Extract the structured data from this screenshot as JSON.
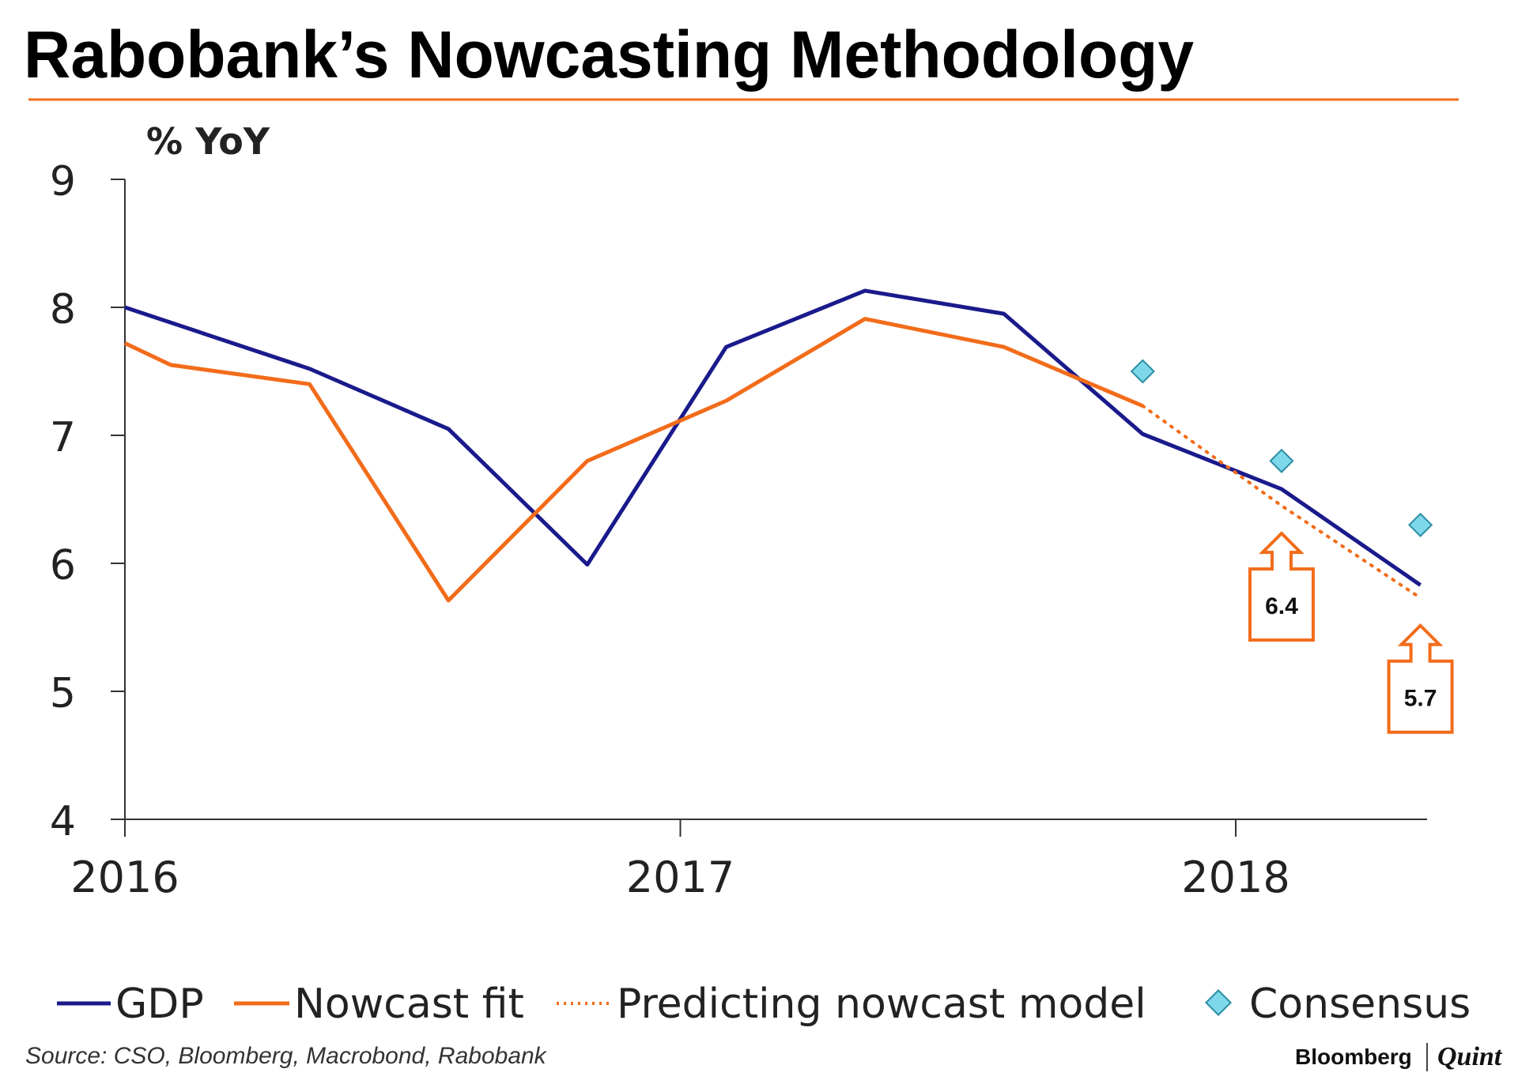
{
  "header": {
    "title": "Rabobank’s Nowcasting Methodology"
  },
  "chart_data": {
    "type": "line",
    "title": "Rabobank’s Nowcasting Methodology",
    "ylabel": "% YoY",
    "xlabel": "",
    "ylim": [
      4,
      9
    ],
    "xlim": [
      0,
      9.35
    ],
    "y_ticks": [
      "4",
      "5",
      "6",
      "7",
      "8",
      "9"
    ],
    "x_ticks": [
      {
        "label": "2016",
        "x": 0
      },
      {
        "label": "2017",
        "x": 4
      },
      {
        "label": "2018",
        "x": 8
      }
    ],
    "series": [
      {
        "name": "GDP",
        "style": "solid",
        "color": "#1a1a8c",
        "x": [
          0,
          1.33,
          2.33,
          3.33,
          4.33,
          5.33,
          6.33,
          7.33,
          8.33,
          9.33
        ],
        "values": [
          8.0,
          7.52,
          7.05,
          5.99,
          7.69,
          8.13,
          7.95,
          7.01,
          6.58,
          5.83
        ]
      },
      {
        "name": "Nowcast fit",
        "style": "solid",
        "color": "#f26c1a",
        "x": [
          0,
          0.33,
          1.33,
          2.33,
          3.33,
          4.33,
          5.33,
          6.33,
          7.33
        ],
        "values": [
          7.72,
          7.55,
          7.4,
          5.71,
          6.8,
          7.27,
          7.91,
          7.69,
          7.23
        ]
      },
      {
        "name": "Predicting nowcast model",
        "style": "dotted",
        "color": "#f26c1a",
        "x": [
          7.33,
          8.33,
          9.33
        ],
        "values": [
          7.23,
          6.45,
          5.73
        ]
      },
      {
        "name": "Consensus",
        "style": "markers",
        "color": "#7fd8ea",
        "x": [
          7.33,
          8.33,
          9.33
        ],
        "values": [
          7.5,
          6.8,
          6.3
        ]
      }
    ],
    "annotations": [
      {
        "text": "6.4",
        "x": 8.33,
        "y": 6.45
      },
      {
        "text": "5.7",
        "x": 9.33,
        "y": 5.73
      }
    ],
    "legend": {
      "position": "bottom",
      "items": [
        "GDP",
        "Nowcast fit",
        "Predicting nowcast model",
        "Consensus"
      ]
    }
  },
  "footer": {
    "source": "Source: CSO, Bloomberg, Macrobond, Rabobank",
    "brand_primary": "Bloomberg",
    "brand_secondary": "Quint"
  }
}
